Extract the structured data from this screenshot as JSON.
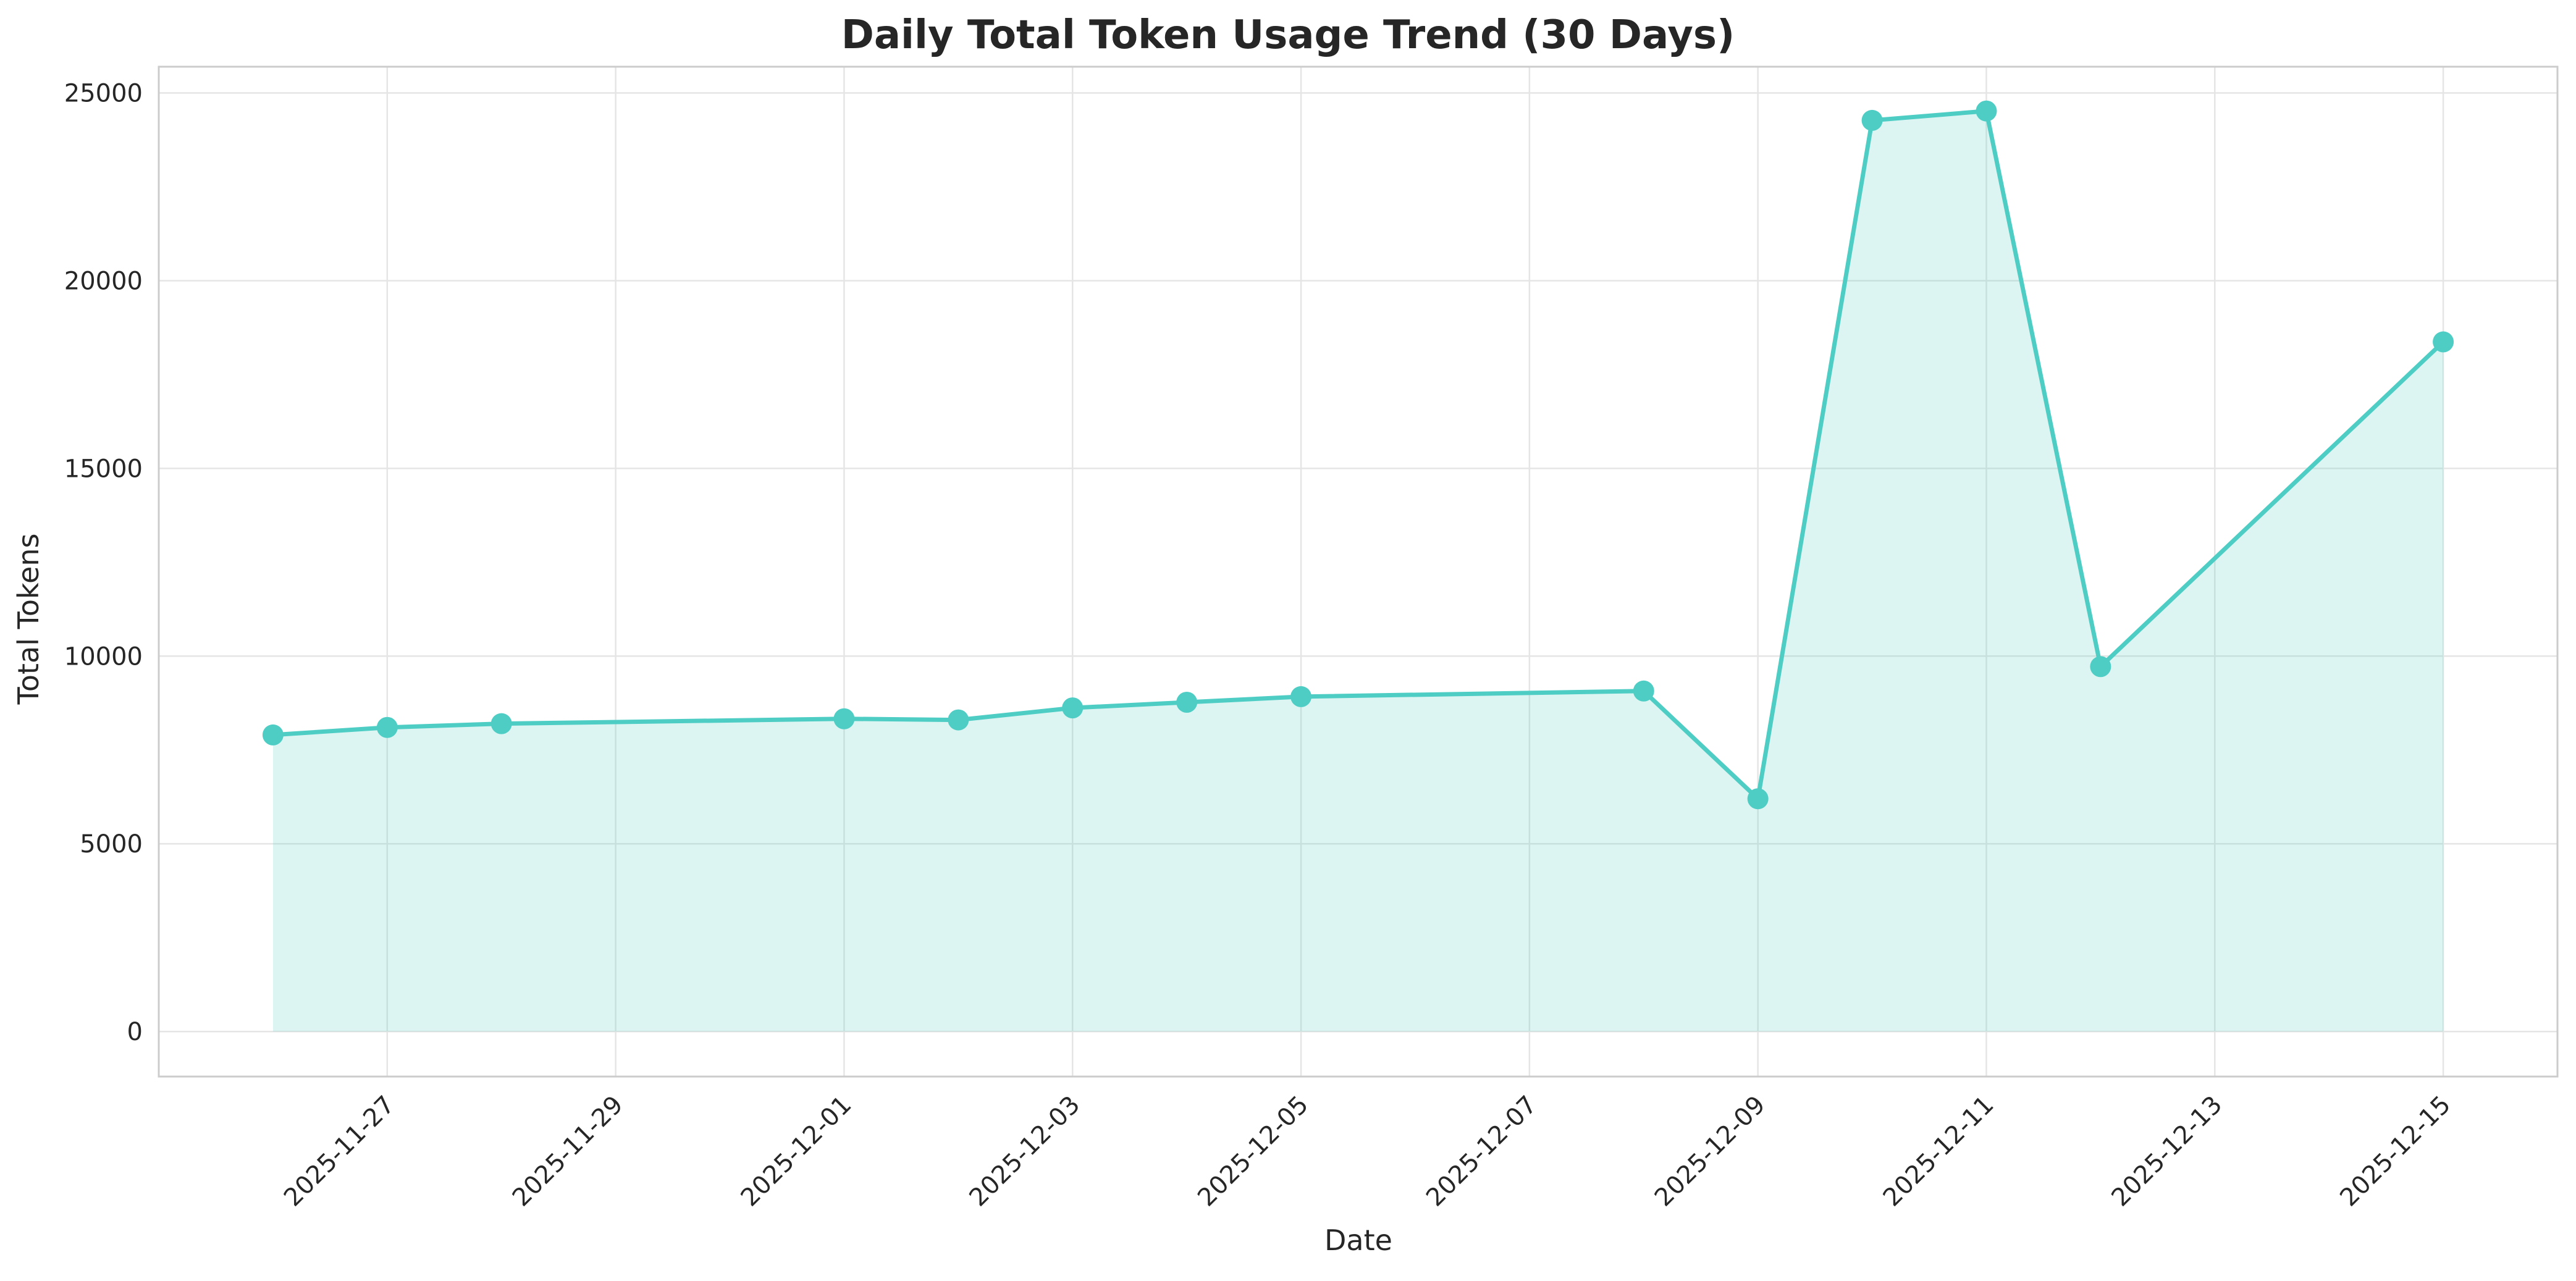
{
  "chart_data": {
    "type": "area",
    "title": "Daily Total Token Usage Trend (30 Days)",
    "xlabel": "Date",
    "ylabel": "Total Tokens",
    "x_tick_labels": [
      "2025-11-27",
      "2025-11-29",
      "2025-12-01",
      "2025-12-03",
      "2025-12-05",
      "2025-12-07",
      "2025-12-09",
      "2025-12-11",
      "2025-12-13",
      "2025-12-15"
    ],
    "y_tick_labels": [
      "0",
      "5000",
      "10000",
      "15000",
      "20000",
      "25000"
    ],
    "x_range": [
      "2025-11-25",
      "2025-12-16"
    ],
    "ylim": [
      -1200,
      25700
    ],
    "grid": true,
    "colors": {
      "line": "#4ecdc4",
      "fill": "#4ecdc4",
      "grid": "#e5e5e5",
      "frame": "#cccccc"
    },
    "series": [
      {
        "x": [
          "2025-11-26",
          "2025-11-27",
          "2025-11-28",
          "2025-12-01",
          "2025-12-02",
          "2025-12-03",
          "2025-12-04",
          "2025-12-05",
          "2025-12-08",
          "2025-12-09",
          "2025-12-10",
          "2025-12-11",
          "2025-12-12",
          "2025-12-15"
        ],
        "values": [
          7900,
          8100,
          8200,
          8330,
          8300,
          8620,
          8770,
          8920,
          9070,
          6200,
          24270,
          24520,
          9720,
          18370
        ]
      }
    ]
  }
}
